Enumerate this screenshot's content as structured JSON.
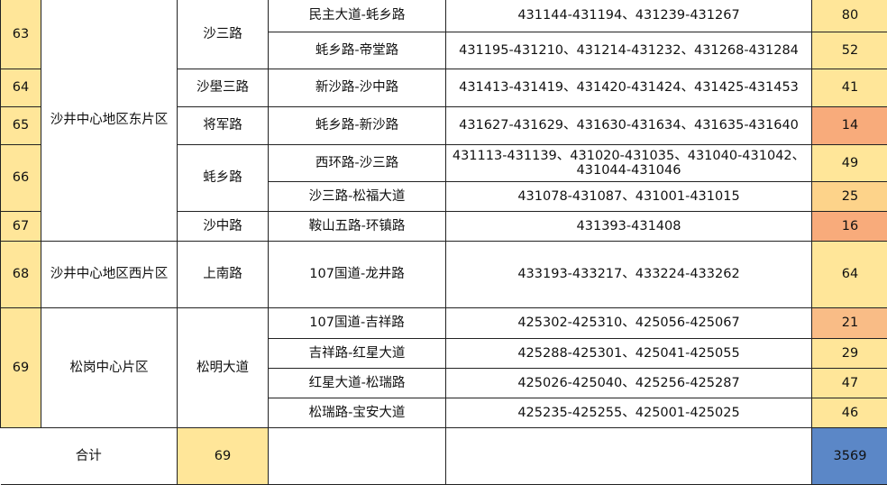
{
  "colors": {
    "yellow": "#FFE699",
    "orange": "#F8AB7B",
    "light_orange": "#F9BC86",
    "pale_orange": "#FDD38A",
    "blue": "#5B87C7"
  },
  "rows": [
    {
      "no": "63",
      "area": "沙井中心地区东片区",
      "road": "沙三路",
      "segments": [
        {
          "name": "民主大道-蚝乡路",
          "codes": "431144-431194、431239-431267",
          "count": "80"
        },
        {
          "name": "蚝乡路-帝堂路",
          "codes": "431195-431210、431214-431232、431268-431284",
          "count": "52"
        }
      ]
    },
    {
      "no": "64",
      "road": "沙壆三路",
      "segments": [
        {
          "name": "新沙路-沙中路",
          "codes": "431413-431419、431420-431424、431425-431453",
          "count": "41"
        }
      ]
    },
    {
      "no": "65",
      "road": "将军路",
      "segments": [
        {
          "name": "蚝乡路-新沙路",
          "codes": "431627-431629、431630-431634、431635-431640",
          "count": "14"
        }
      ]
    },
    {
      "no": "66",
      "road": "蚝乡路",
      "segments": [
        {
          "name": "西环路-沙三路",
          "codes": "431113-431139、431020-431035、431040-431042、431044-431046",
          "count": "49"
        },
        {
          "name": "沙三路-松福大道",
          "codes": "431078-431087、431001-431015",
          "count": "25"
        }
      ]
    },
    {
      "no": "67",
      "road": "沙中路",
      "segments": [
        {
          "name": "鞍山五路-环镇路",
          "codes": "431393-431408",
          "count": "16"
        }
      ]
    },
    {
      "no": "68",
      "area": "沙井中心地区西片区",
      "road": "上南路",
      "segments": [
        {
          "name": "107国道-龙井路",
          "codes": "433193-433217、433224-433262",
          "count": "64"
        }
      ]
    },
    {
      "no": "69",
      "area": "松岗中心片区",
      "road": "松明大道",
      "segments": [
        {
          "name": "107国道-吉祥路",
          "codes": "425302-425310、425056-425067",
          "count": "21"
        },
        {
          "name": "吉祥路-红星大道",
          "codes": "425288-425301、425041-425055",
          "count": "29"
        },
        {
          "name": "红星大道-松瑞路",
          "codes": "425026-425040、425256-425287",
          "count": "47"
        },
        {
          "name": "松瑞路-宝安大道",
          "codes": "425235-425255、425001-425025",
          "count": "46"
        }
      ]
    }
  ],
  "total": {
    "label": "合计",
    "count": "69",
    "sum": "3569"
  }
}
